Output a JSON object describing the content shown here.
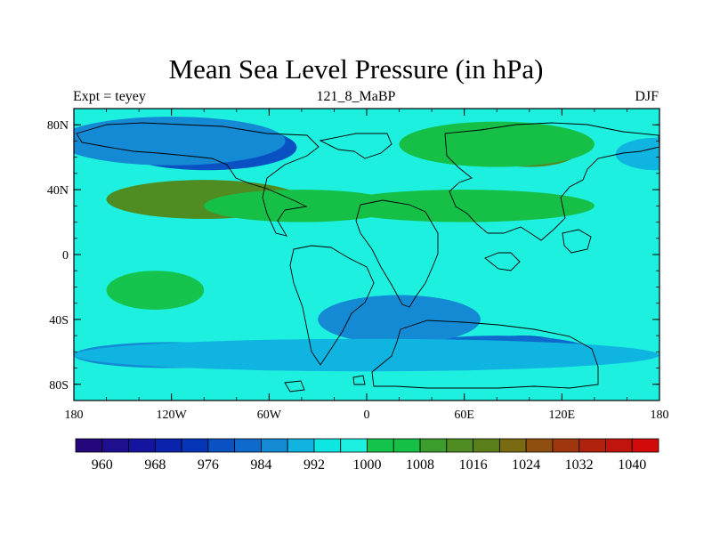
{
  "chart_data": {
    "type": "heatmap",
    "title": "Mean Sea Level Pressure (in hPa)",
    "subtitle_left": "Expt = teyey",
    "subtitle_center": "121_8_MaBP",
    "subtitle_right": "DJF",
    "x_ticks": [
      {
        "value": -180,
        "label": "180"
      },
      {
        "value": -120,
        "label": "120W"
      },
      {
        "value": -60,
        "label": "60W"
      },
      {
        "value": 0,
        "label": "0"
      },
      {
        "value": 60,
        "label": "60E"
      },
      {
        "value": 120,
        "label": "120E"
      },
      {
        "value": 180,
        "label": "180"
      }
    ],
    "y_ticks": [
      {
        "value": 80,
        "label": "80N"
      },
      {
        "value": 40,
        "label": "40N"
      },
      {
        "value": 0,
        "label": "0"
      },
      {
        "value": -40,
        "label": "40S"
      },
      {
        "value": -80,
        "label": "80S"
      }
    ],
    "xlim": [
      -180,
      180
    ],
    "ylim": [
      -90,
      90
    ],
    "colorbar": {
      "levels": [
        956,
        960,
        964,
        968,
        972,
        976,
        980,
        984,
        988,
        992,
        996,
        1000,
        1004,
        1008,
        1012,
        1016,
        1020,
        1024,
        1028,
        1032,
        1036,
        1040,
        1044
      ],
      "colors": [
        "#24077a",
        "#1d0f8e",
        "#1414a0",
        "#0a23ac",
        "#0636b8",
        "#0a52c3",
        "#0e6acc",
        "#1489d4",
        "#10b4e0",
        "#0ee6e2",
        "#1ef0df",
        "#14c44c",
        "#16c046",
        "#3b9e2c",
        "#4f8c22",
        "#5a7e1a",
        "#7a6a12",
        "#8e4f10",
        "#a0360e",
        "#b0220c",
        "#c0140c",
        "#d20a0a"
      ],
      "labels": [
        {
          "value": 960,
          "label": "960"
        },
        {
          "value": 968,
          "label": "968"
        },
        {
          "value": 976,
          "label": "976"
        },
        {
          "value": 984,
          "label": "984"
        },
        {
          "value": 992,
          "label": "992"
        },
        {
          "value": 1000,
          "label": "1000"
        },
        {
          "value": 1008,
          "label": "1008"
        },
        {
          "value": 1016,
          "label": "1016"
        },
        {
          "value": 1024,
          "label": "1024"
        },
        {
          "value": 1032,
          "label": "1032"
        },
        {
          "value": 1040,
          "label": "1040"
        }
      ]
    },
    "background_hpa": 996,
    "pressure_features": [
      {
        "type": "low",
        "lon": -98,
        "lat": 66,
        "hpa": 978,
        "wx": 55,
        "wy": 14
      },
      {
        "type": "low",
        "lon": -120,
        "lat": 70,
        "hpa": 986,
        "wx": 70,
        "wy": 15
      },
      {
        "type": "low",
        "lon": 178,
        "lat": 62,
        "hpa": 988,
        "wx": 25,
        "wy": 10
      },
      {
        "type": "high",
        "lon": -100,
        "lat": 34,
        "hpa": 1015,
        "wx": 60,
        "wy": 12
      },
      {
        "type": "high",
        "lon": -40,
        "lat": 30,
        "hpa": 1004,
        "wx": 60,
        "wy": 10
      },
      {
        "type": "high",
        "lon": 60,
        "lat": 30,
        "hpa": 1004,
        "wx": 80,
        "wy": 10
      },
      {
        "type": "high",
        "lon": 100,
        "lat": 64,
        "hpa": 1012,
        "wx": 30,
        "wy": 10
      },
      {
        "type": "high",
        "lon": 80,
        "lat": 68,
        "hpa": 1004,
        "wx": 60,
        "wy": 14
      },
      {
        "type": "high",
        "lon": -130,
        "lat": -22,
        "hpa": 1003,
        "wx": 30,
        "wy": 12
      },
      {
        "type": "low",
        "lon": 95,
        "lat": -58,
        "hpa": 975,
        "wx": 30,
        "wy": 8
      },
      {
        "type": "low",
        "lon": 80,
        "lat": -60,
        "hpa": 983,
        "wx": 60,
        "wy": 10
      },
      {
        "type": "low",
        "lon": 20,
        "lat": -40,
        "hpa": 987,
        "wx": 50,
        "wy": 15
      },
      {
        "type": "low",
        "lon": -120,
        "lat": -62,
        "hpa": 986,
        "wx": 60,
        "wy": 8
      },
      {
        "type": "low",
        "lon": 0,
        "lat": -62,
        "hpa": 988,
        "wx": 180,
        "wy": 10
      }
    ]
  }
}
